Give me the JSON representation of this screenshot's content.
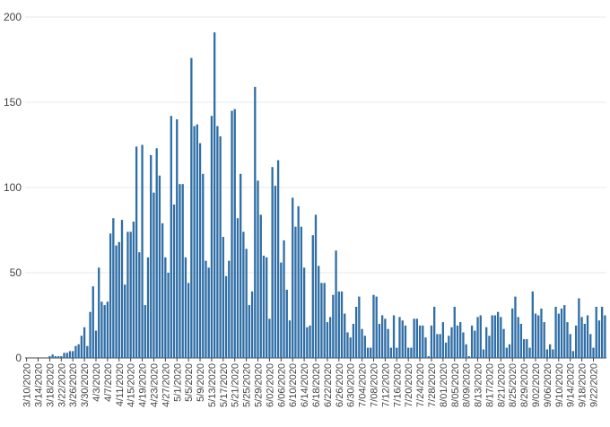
{
  "chart_data": {
    "type": "bar",
    "title": "",
    "xlabel": "",
    "ylabel": "",
    "ylim": [
      0,
      200
    ],
    "yticks": [
      0,
      50,
      100,
      150,
      200
    ],
    "grid": true,
    "legend": "none",
    "bar_color": "#2f6ea6",
    "x_start": "3/10/2020",
    "x_tick_labels": [
      "3/10/2020",
      "3/14/2020",
      "3/18/2020",
      "3/22/2020",
      "3/26/2020",
      "3/30/2020",
      "4/3/2020",
      "4/7/2020",
      "4/11/2020",
      "4/15/2020",
      "4/19/2020",
      "4/23/2020",
      "4/27/2020",
      "5/1/2020",
      "5/5/2020",
      "5/9/2020",
      "5/13/2020",
      "5/17/2020",
      "5/21/2020",
      "5/25/2020",
      "5/29/2020",
      "6/02/2020",
      "6/06/2020",
      "6/10/2020",
      "6/14/2020",
      "6/18/2020",
      "6/22/2020",
      "6/26/2020",
      "6/30/2020",
      "7/04/2020",
      "7/08/2020",
      "7/12/2020",
      "7/16/2020",
      "7/20/2020",
      "7/24/2020",
      "7/28/2020",
      "8/01/2020",
      "8/05/2020",
      "8/09/2020",
      "8/13/2020",
      "8/17/2020",
      "8/21/2020",
      "8/25/2020",
      "8/29/2020",
      "9/02/2020",
      "9/06/2020",
      "9/10/2020",
      "9/14/2020",
      "9/18/2020",
      "9/22/2020"
    ],
    "values": [
      0,
      0,
      0,
      0,
      0,
      0,
      0,
      0,
      1,
      2,
      1,
      1,
      1,
      3,
      3,
      4,
      4,
      7,
      8,
      13,
      18,
      7,
      27,
      42,
      16,
      53,
      33,
      31,
      33,
      73,
      82,
      66,
      68,
      81,
      43,
      74,
      74,
      80,
      124,
      62,
      125,
      31,
      59,
      119,
      97,
      123,
      107,
      79,
      59,
      50,
      142,
      90,
      140,
      102,
      102,
      59,
      44,
      176,
      136,
      137,
      126,
      108,
      57,
      53,
      142,
      191,
      136,
      130,
      71,
      48,
      57,
      145,
      146,
      82,
      108,
      74,
      64,
      31,
      39,
      159,
      104,
      84,
      60,
      59,
      23,
      112,
      101,
      116,
      56,
      69,
      40,
      22,
      94,
      77,
      89,
      77,
      53,
      18,
      19,
      72,
      84,
      54,
      44,
      44,
      21,
      24,
      37,
      63,
      39,
      39,
      26,
      15,
      12,
      20,
      30,
      36,
      17,
      13,
      6,
      6,
      37,
      36,
      20,
      25,
      23,
      17,
      6,
      25,
      6,
      24,
      22,
      19,
      6,
      6,
      23,
      23,
      19,
      19,
      12,
      1,
      19,
      30,
      14,
      14,
      21,
      9,
      13,
      18,
      30,
      19,
      21,
      15,
      8,
      1,
      19,
      16,
      24,
      25,
      5,
      18,
      13,
      25,
      25,
      27,
      24,
      17,
      6,
      8,
      29,
      36,
      24,
      20,
      11,
      11,
      6,
      39,
      26,
      25,
      29,
      21,
      5,
      8,
      5,
      30,
      26,
      29,
      31,
      21,
      14,
      4,
      19,
      35,
      24,
      20,
      25,
      14,
      6,
      30,
      22,
      30,
      25
    ]
  }
}
